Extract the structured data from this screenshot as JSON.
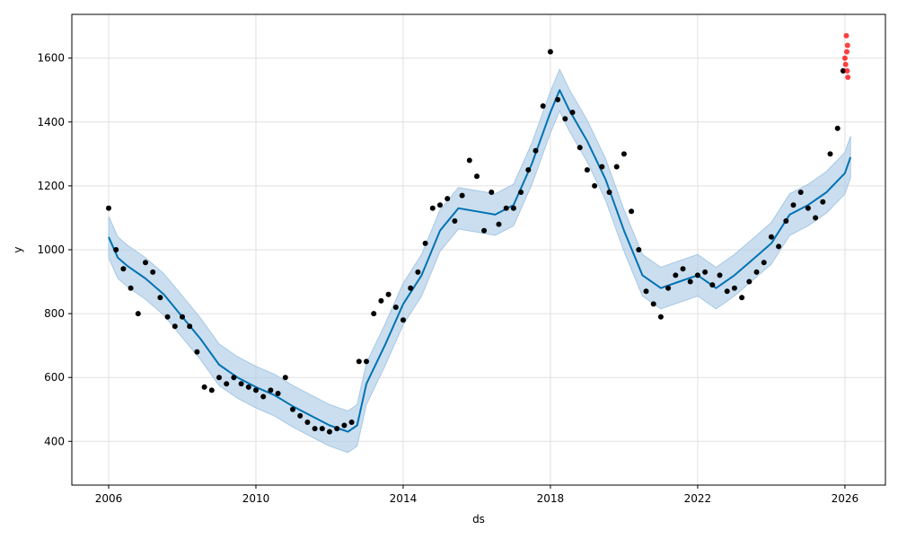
{
  "chart_data": {
    "type": "line",
    "title": "",
    "xlabel": "ds",
    "ylabel": "y",
    "xlim": [
      2005.0,
      2027.1
    ],
    "ylim": [
      263,
      1737
    ],
    "xticks": [
      2006,
      2010,
      2014,
      2018,
      2022,
      2026
    ],
    "yticks": [
      400,
      600,
      800,
      1000,
      1200,
      1400,
      1600
    ],
    "grid": true,
    "legend": "none",
    "colors": {
      "forecast": "#0072b2",
      "band": "#a6c8e4",
      "observed": "#000000",
      "test": "#ff0000"
    },
    "forecast": {
      "name": "",
      "x": [
        2006.0,
        2006.25,
        2006.5,
        2007.0,
        2007.5,
        2008.0,
        2008.5,
        2009.0,
        2009.5,
        2010.0,
        2010.5,
        2011.0,
        2011.5,
        2012.0,
        2012.5,
        2012.75,
        2013.0,
        2013.5,
        2014.0,
        2014.5,
        2015.0,
        2015.5,
        2016.0,
        2016.5,
        2017.0,
        2017.5,
        2018.0,
        2018.25,
        2018.5,
        2019.0,
        2019.5,
        2020.0,
        2020.5,
        2021.0,
        2021.5,
        2022.0,
        2022.5,
        2023.0,
        2023.5,
        2024.0,
        2024.5,
        2025.0,
        2025.5,
        2026.0,
        2026.15
      ],
      "y": [
        1040,
        975,
        950,
        910,
        860,
        790,
        720,
        640,
        600,
        570,
        545,
        510,
        480,
        450,
        430,
        450,
        580,
        700,
        830,
        920,
        1060,
        1130,
        1120,
        1110,
        1140,
        1270,
        1430,
        1500,
        1440,
        1340,
        1220,
        1060,
        920,
        880,
        900,
        920,
        880,
        920,
        970,
        1020,
        1110,
        1140,
        1180,
        1240,
        1290
      ],
      "band_halfwidth": 65
    },
    "observed": {
      "name": "",
      "x": [
        2006.0,
        2006.2,
        2006.4,
        2006.6,
        2006.8,
        2007.0,
        2007.2,
        2007.4,
        2007.6,
        2007.8,
        2008.0,
        2008.2,
        2008.4,
        2008.6,
        2008.8,
        2009.0,
        2009.2,
        2009.4,
        2009.6,
        2009.8,
        2010.0,
        2010.2,
        2010.4,
        2010.6,
        2010.8,
        2011.0,
        2011.2,
        2011.4,
        2011.6,
        2011.8,
        2012.0,
        2012.2,
        2012.4,
        2012.6,
        2012.8,
        2013.0,
        2013.2,
        2013.4,
        2013.6,
        2013.8,
        2014.0,
        2014.2,
        2014.4,
        2014.6,
        2014.8,
        2015.0,
        2015.2,
        2015.4,
        2015.6,
        2015.8,
        2016.0,
        2016.2,
        2016.4,
        2016.6,
        2016.8,
        2017.0,
        2017.2,
        2017.4,
        2017.6,
        2017.8,
        2018.0,
        2018.2,
        2018.4,
        2018.6,
        2018.8,
        2019.0,
        2019.2,
        2019.4,
        2019.6,
        2019.8,
        2020.0,
        2020.2,
        2020.4,
        2020.6,
        2020.8,
        2021.0,
        2021.2,
        2021.4,
        2021.6,
        2021.8,
        2022.0,
        2022.2,
        2022.4,
        2022.6,
        2022.8,
        2023.0,
        2023.2,
        2023.4,
        2023.6,
        2023.8,
        2024.0,
        2024.2,
        2024.4,
        2024.6,
        2024.8,
        2025.0,
        2025.2,
        2025.4,
        2025.6,
        2025.8,
        2025.95
      ],
      "y": [
        1130,
        1000,
        940,
        880,
        800,
        960,
        930,
        850,
        790,
        760,
        790,
        760,
        680,
        570,
        560,
        600,
        580,
        600,
        580,
        570,
        560,
        540,
        560,
        550,
        600,
        500,
        480,
        460,
        440,
        440,
        430,
        440,
        450,
        460,
        650,
        650,
        800,
        840,
        860,
        820,
        780,
        880,
        930,
        1020,
        1130,
        1140,
        1160,
        1090,
        1170,
        1280,
        1230,
        1060,
        1180,
        1080,
        1130,
        1130,
        1180,
        1250,
        1310,
        1450,
        1620,
        1470,
        1410,
        1430,
        1320,
        1250,
        1200,
        1260,
        1180,
        1260,
        1300,
        1120,
        1000,
        870,
        830,
        790,
        880,
        920,
        940,
        900,
        920,
        930,
        890,
        920,
        870,
        880,
        850,
        900,
        930,
        960,
        1040,
        1010,
        1090,
        1140,
        1180,
        1130,
        1100,
        1150,
        1300,
        1380,
        1560
      ]
    },
    "test_points": {
      "name": "",
      "x": [
        2026.0,
        2026.02,
        2026.04,
        2026.05,
        2026.06,
        2026.07,
        2026.08
      ],
      "y": [
        1600,
        1580,
        1670,
        1620,
        1560,
        1640,
        1540
      ]
    }
  }
}
